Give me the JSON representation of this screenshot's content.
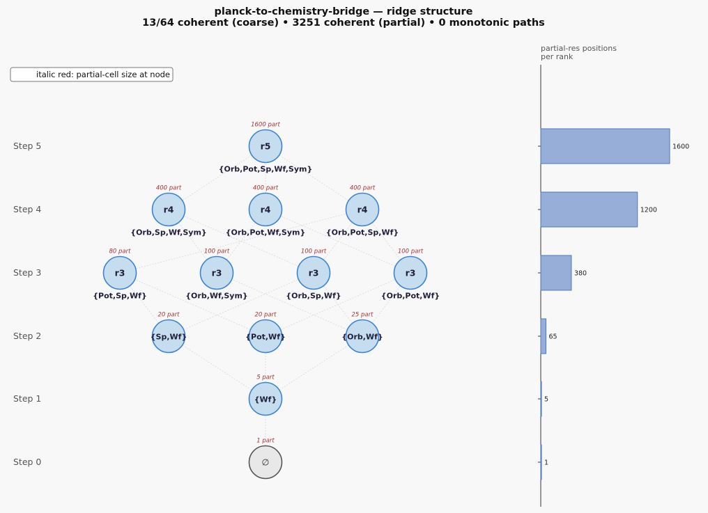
{
  "title": {
    "line1": "planck-to-chemistry-bridge — ridge structure",
    "line2": "13/64 coherent (coarse)  •  3251 coherent (partial)  •  0 monotonic paths"
  },
  "legend": {
    "text": "italic red: partial-cell size at node"
  },
  "steps": [
    "Step 0",
    "Step 1",
    "Step 2",
    "Step 3",
    "Step 4",
    "Step 5"
  ],
  "nodes": [
    {
      "id": "n0",
      "step": 0,
      "label": "∅",
      "set": "",
      "part": "1 part",
      "kind": "empty"
    },
    {
      "id": "n1",
      "step": 1,
      "label": "{Wf}",
      "set": "",
      "part": "5 part",
      "kind": "set"
    },
    {
      "id": "n2a",
      "step": 2,
      "label": "{Sp,Wf}",
      "set": "",
      "part": "20 part",
      "kind": "set"
    },
    {
      "id": "n2b",
      "step": 2,
      "label": "{Pot,Wf}",
      "set": "",
      "part": "20 part",
      "kind": "set"
    },
    {
      "id": "n2c",
      "step": 2,
      "label": "{Orb,Wf}",
      "set": "",
      "part": "25 part",
      "kind": "set"
    },
    {
      "id": "n3a",
      "step": 3,
      "label": "r3",
      "set": "{Pot,Sp,Wf}",
      "part": "80 part",
      "kind": "rank"
    },
    {
      "id": "n3b",
      "step": 3,
      "label": "r3",
      "set": "{Orb,Wf,Sym}",
      "part": "100 part",
      "kind": "rank"
    },
    {
      "id": "n3c",
      "step": 3,
      "label": "r3",
      "set": "{Orb,Sp,Wf}",
      "part": "100 part",
      "kind": "rank"
    },
    {
      "id": "n3d",
      "step": 3,
      "label": "r3",
      "set": "{Orb,Pot,Wf}",
      "part": "100 part",
      "kind": "rank"
    },
    {
      "id": "n4a",
      "step": 4,
      "label": "r4",
      "set": "{Orb,Sp,Wf,Sym}",
      "part": "400 part",
      "kind": "rank"
    },
    {
      "id": "n4b",
      "step": 4,
      "label": "r4",
      "set": "{Orb,Pot,Wf,Sym}",
      "part": "400 part",
      "kind": "rank"
    },
    {
      "id": "n4c",
      "step": 4,
      "label": "r4",
      "set": "{Orb,Pot,Sp,Wf}",
      "part": "400 part",
      "kind": "rank"
    },
    {
      "id": "n5",
      "step": 5,
      "label": "r5",
      "set": "{Orb,Pot,Sp,Wf,Sym}",
      "part": "1600 part",
      "kind": "rank"
    }
  ],
  "edges": [
    [
      "n0",
      "n1"
    ],
    [
      "n1",
      "n2a"
    ],
    [
      "n1",
      "n2b"
    ],
    [
      "n1",
      "n2c"
    ],
    [
      "n2a",
      "n3a"
    ],
    [
      "n2a",
      "n3c"
    ],
    [
      "n2b",
      "n3a"
    ],
    [
      "n2b",
      "n3d"
    ],
    [
      "n2c",
      "n3b"
    ],
    [
      "n2c",
      "n3c"
    ],
    [
      "n2c",
      "n3d"
    ],
    [
      "n3a",
      "n4c"
    ],
    [
      "n3b",
      "n4a"
    ],
    [
      "n3b",
      "n4b"
    ],
    [
      "n3c",
      "n4a"
    ],
    [
      "n3c",
      "n4c"
    ],
    [
      "n3d",
      "n4b"
    ],
    [
      "n3d",
      "n4c"
    ],
    [
      "n4a",
      "n5"
    ],
    [
      "n4b",
      "n5"
    ],
    [
      "n4c",
      "n5"
    ]
  ],
  "bar_panel": {
    "title_line1": "partial-res positions",
    "title_line2": "per rank"
  },
  "chart_data": {
    "type": "bar",
    "orientation": "horizontal",
    "categories": [
      "Step 0",
      "Step 1",
      "Step 2",
      "Step 3",
      "Step 4",
      "Step 5"
    ],
    "values": [
      1,
      5,
      65,
      380,
      1200,
      1600
    ],
    "value_labels": [
      "1",
      "5",
      "65",
      "380",
      "1200",
      "1600"
    ],
    "xlim": [
      0,
      1600
    ]
  },
  "colors": {
    "node_fill": "#c6ddf0",
    "node_stroke": "#3b84d4",
    "empty_fill": "#e8e8e8",
    "empty_stroke": "#555555",
    "bar_fill": "#97afd8",
    "bar_stroke": "#4a78c2",
    "edge": "#d8d8d8",
    "part_text": "#aa3333"
  }
}
